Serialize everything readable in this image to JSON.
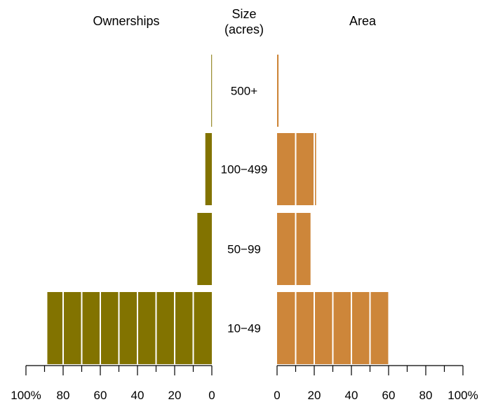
{
  "chart_data": {
    "type": "bar",
    "subtype": "back-to-back horizontal bar (pyramid)",
    "size_header": [
      "Size",
      "(acres)"
    ],
    "categories": [
      "500+",
      "100−499",
      "50−99",
      "10−49"
    ],
    "series": [
      {
        "name": "Ownerships",
        "color": "#827300",
        "values": [
          0.3,
          3.5,
          7.8,
          88.5
        ]
      },
      {
        "name": "Area",
        "color": "#CD863A",
        "values": [
          0.8,
          21.0,
          18.0,
          59.8
        ]
      }
    ],
    "ownerships_axis": {
      "reversed": true,
      "xlim": [
        0,
        100
      ],
      "tick_labels": [
        "100%",
        "80",
        "60",
        "40",
        "20",
        "0"
      ],
      "major_ticks": [
        100,
        80,
        60,
        40,
        20,
        0
      ],
      "minor_ticks": [
        90,
        70,
        50,
        30,
        10
      ]
    },
    "area_axis": {
      "xlim": [
        0,
        100
      ],
      "tick_labels": [
        "0",
        "20",
        "40",
        "60",
        "80",
        "100%"
      ],
      "major_ticks": [
        0,
        20,
        40,
        60,
        80,
        100
      ],
      "minor_ticks": [
        10,
        30,
        50,
        70,
        90
      ]
    },
    "bar_segment_width": 10,
    "bar_segment_separator_color": "#ffffff",
    "grid": false,
    "legend": "none"
  }
}
